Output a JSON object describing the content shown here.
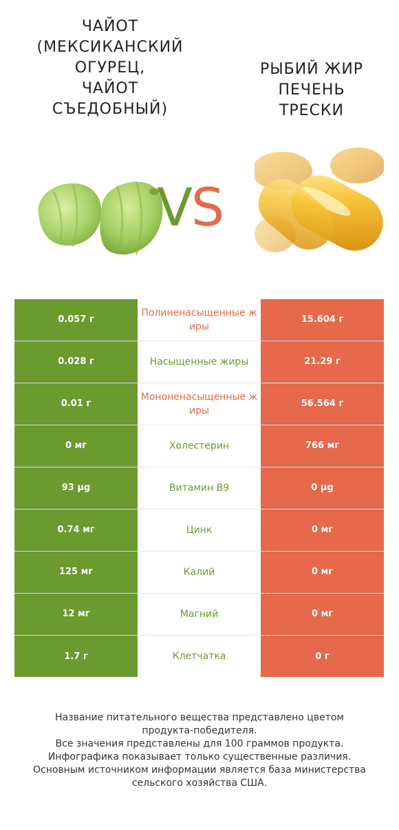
{
  "header": {
    "left_title": "Чайот (Мексиканский огурец, чайот съедобный)",
    "left_title_lines": [
      "ЧАЙОТ",
      "(МЕКСИКАНСКИЙ",
      "ОГУРЕЦ,",
      "ЧАЙОТ",
      "СЪЕДОБНЫЙ)"
    ],
    "right_title_lines": [
      "РЫБИЙ ЖИР",
      "ПЕЧЕНЬ",
      "ТРЕСКИ"
    ],
    "vs_v": "V",
    "vs_s": "S"
  },
  "colors": {
    "left": "#6b9a2e",
    "right": "#e5694a"
  },
  "rows": [
    {
      "left": "0.057 г",
      "name": "Полиненасыщенные жиры",
      "right": "15.604 г",
      "winner": "right"
    },
    {
      "left": "0.028 г",
      "name": "Насыщенные жиры",
      "right": "21.29 г",
      "winner": "left"
    },
    {
      "left": "0.01 г",
      "name": "Мононенасыщенные жиры",
      "right": "56.564 г",
      "winner": "right"
    },
    {
      "left": "0 мг",
      "name": "Холестерин",
      "right": "766 мг",
      "winner": "left"
    },
    {
      "left": "93 µg",
      "name": "Витамин B9",
      "right": "0 µg",
      "winner": "left"
    },
    {
      "left": "0.74 мг",
      "name": "Цинк",
      "right": "0 мг",
      "winner": "left"
    },
    {
      "left": "125 мг",
      "name": "Калий",
      "right": "0 мг",
      "winner": "left"
    },
    {
      "left": "12 мг",
      "name": "Магний",
      "right": "0 мг",
      "winner": "left"
    },
    {
      "left": "1.7 г",
      "name": "Клетчатка",
      "right": "0 г",
      "winner": "left"
    }
  ],
  "footer": {
    "line1": "Название питательного вещества представлено цветом",
    "line2": "продукта-победителя.",
    "line3": "Все значения представлены для 100 граммов продукта.",
    "line4": "Инфографика показывает только существенные различия.",
    "line5": "Основным источником информации является база министерства",
    "line6": "сельского хозяйства США."
  }
}
